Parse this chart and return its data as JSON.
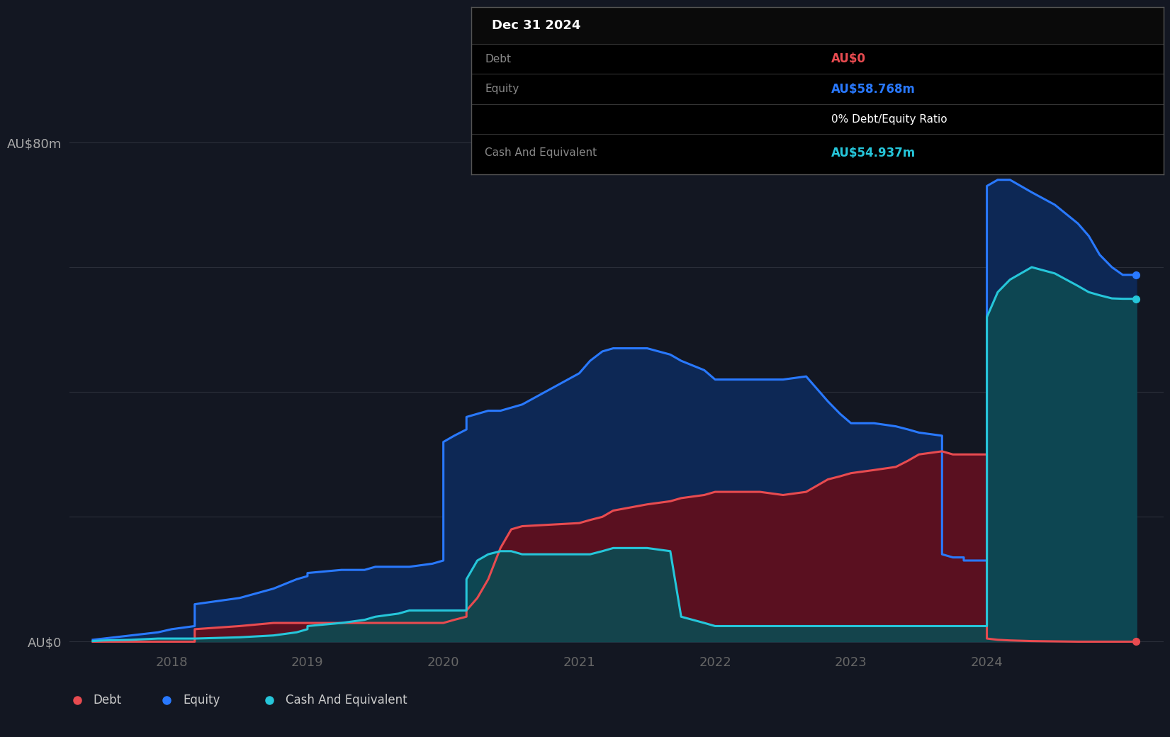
{
  "bg_color": "#131722",
  "plot_bg_color": "#131722",
  "grid_color": "#2a2e39",
  "debt_color": "#e84b50",
  "equity_color": "#2979ff",
  "cash_color": "#26c6da",
  "debt_fill_color": "#5a1020",
  "equity_fill_color": "#0d2855",
  "cash_fill_color": "#0d4a52",
  "ylabel_top": "AU$80m",
  "ylabel_bottom": "AU$0",
  "xlim": [
    2017.25,
    2025.3
  ],
  "ylim": [
    -1,
    85
  ],
  "time_points": [
    2017.42,
    2017.5,
    2017.7,
    2017.9,
    2018.0,
    2018.17,
    2018.17,
    2018.5,
    2018.75,
    2018.92,
    2019.0,
    2019.0,
    2019.25,
    2019.42,
    2019.5,
    2019.67,
    2019.75,
    2019.92,
    2020.0,
    2020.0,
    2020.08,
    2020.17,
    2020.17,
    2020.25,
    2020.33,
    2020.42,
    2020.5,
    2020.58,
    2021.0,
    2021.08,
    2021.17,
    2021.25,
    2021.5,
    2021.67,
    2021.75,
    2021.92,
    2022.0,
    2022.17,
    2022.33,
    2022.5,
    2022.67,
    2022.75,
    2022.83,
    2022.92,
    2023.0,
    2023.17,
    2023.33,
    2023.42,
    2023.5,
    2023.67,
    2023.67,
    2023.75,
    2023.83,
    2023.83,
    2024.0,
    2024.0,
    2024.08,
    2024.17,
    2024.33,
    2024.5,
    2024.67,
    2024.75,
    2024.83,
    2024.92,
    2025.0,
    2025.1
  ],
  "equity_values": [
    0.3,
    0.5,
    1.0,
    1.5,
    2.0,
    2.5,
    6.0,
    7.0,
    8.5,
    10.0,
    10.5,
    11.0,
    11.5,
    11.5,
    12.0,
    12.0,
    12.0,
    12.5,
    13.0,
    32.0,
    33.0,
    34.0,
    36.0,
    36.5,
    37.0,
    37.0,
    37.5,
    38.0,
    43.0,
    45.0,
    46.5,
    47.0,
    47.0,
    46.0,
    45.0,
    43.5,
    42.0,
    42.0,
    42.0,
    42.0,
    42.5,
    40.5,
    38.5,
    36.5,
    35.0,
    35.0,
    34.5,
    34.0,
    33.5,
    33.0,
    14.0,
    13.5,
    13.5,
    13.0,
    13.0,
    73.0,
    74.0,
    74.0,
    72.0,
    70.0,
    67.0,
    65.0,
    62.0,
    60.0,
    58.77,
    58.77
  ],
  "debt_values": [
    0.0,
    0.0,
    0.0,
    0.0,
    0.0,
    0.0,
    2.0,
    2.5,
    3.0,
    3.0,
    3.0,
    3.0,
    3.0,
    3.0,
    3.0,
    3.0,
    3.0,
    3.0,
    3.0,
    3.0,
    3.5,
    4.0,
    5.0,
    7.0,
    10.0,
    15.0,
    18.0,
    18.5,
    19.0,
    19.5,
    20.0,
    21.0,
    22.0,
    22.5,
    23.0,
    23.5,
    24.0,
    24.0,
    24.0,
    23.5,
    24.0,
    25.0,
    26.0,
    26.5,
    27.0,
    27.5,
    28.0,
    29.0,
    30.0,
    30.5,
    30.5,
    30.0,
    30.0,
    30.0,
    30.0,
    0.5,
    0.3,
    0.2,
    0.1,
    0.05,
    0.0,
    0.0,
    0.0,
    0.0,
    0.0,
    0.0
  ],
  "cash_values": [
    0.1,
    0.2,
    0.3,
    0.5,
    0.5,
    0.5,
    0.5,
    0.7,
    1.0,
    1.5,
    2.0,
    2.5,
    3.0,
    3.5,
    4.0,
    4.5,
    5.0,
    5.0,
    5.0,
    5.0,
    5.0,
    5.0,
    10.0,
    13.0,
    14.0,
    14.5,
    14.5,
    14.0,
    14.0,
    14.0,
    14.5,
    15.0,
    15.0,
    14.5,
    4.0,
    3.0,
    2.5,
    2.5,
    2.5,
    2.5,
    2.5,
    2.5,
    2.5,
    2.5,
    2.5,
    2.5,
    2.5,
    2.5,
    2.5,
    2.5,
    2.5,
    2.5,
    2.5,
    2.5,
    2.5,
    52.0,
    56.0,
    58.0,
    60.0,
    59.0,
    57.0,
    56.0,
    55.5,
    55.0,
    54.937,
    54.937
  ],
  "xtick_years": [
    2018,
    2019,
    2020,
    2021,
    2022,
    2023,
    2024
  ],
  "ytick_gridlines": [
    0,
    20,
    40,
    60,
    80
  ],
  "tooltip_date": "Dec 31 2024",
  "tooltip_debt_label": "Debt",
  "tooltip_debt_value": "AU$0",
  "tooltip_equity_label": "Equity",
  "tooltip_equity_value": "AU$58.768m",
  "tooltip_ratio": "0% Debt/Equity Ratio",
  "tooltip_cash_label": "Cash And Equivalent",
  "tooltip_cash_value": "AU$54.937m",
  "legend_labels": [
    "Debt",
    "Equity",
    "Cash And Equivalent"
  ],
  "legend_dot_debt": "#e84b50",
  "legend_dot_equity": "#2979ff",
  "legend_dot_cash": "#26c6da"
}
